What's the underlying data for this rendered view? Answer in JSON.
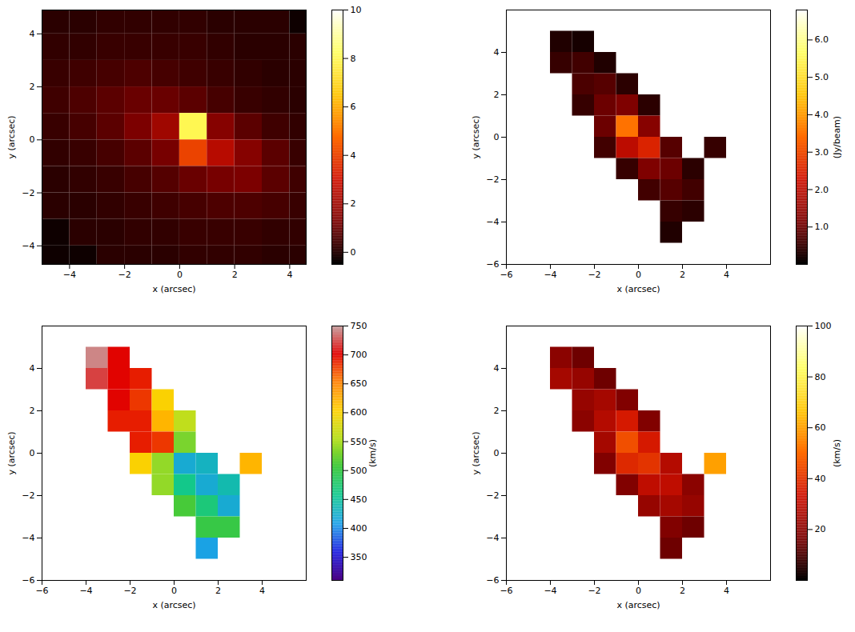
{
  "chart_data": [
    {
      "type": "heatmap",
      "x_label": "x (arcsec)",
      "y_label": "y (arcsec)",
      "xlim": [
        -5,
        4.6
      ],
      "ylim": [
        -4.7,
        4.9
      ],
      "xticks": [
        -4,
        -2,
        0,
        2,
        4
      ],
      "yticks": [
        -4,
        -2,
        0,
        2,
        4
      ],
      "cells": {
        "x": [
          -4.5,
          -3.5,
          -2.5,
          -1.5,
          -0.5,
          0.5,
          1.5,
          2.5,
          3.5,
          4.5
        ],
        "y": [
          4.5,
          3.5,
          2.5,
          1.5,
          0.5,
          -0.5,
          -1.5,
          -2.5,
          -3.5,
          -4.5
        ],
        "values": [
          [
            0.1,
            0.1,
            0.2,
            0.2,
            0.2,
            0.2,
            0.1,
            0.1,
            0.1,
            -0.3
          ],
          [
            0.2,
            0.2,
            0.3,
            0.3,
            0.3,
            0.3,
            0.2,
            0.1,
            0.1,
            0.1
          ],
          [
            0.3,
            0.4,
            0.5,
            0.6,
            0.5,
            0.4,
            0.3,
            0.2,
            0.1,
            0.1
          ],
          [
            0.4,
            0.6,
            0.8,
            1.0,
            1.0,
            0.8,
            0.5,
            0.3,
            0.2,
            0.1
          ],
          [
            0.3,
            0.5,
            0.8,
            1.3,
            2.0,
            8.0,
            1.5,
            0.8,
            0.4,
            0.2
          ],
          [
            0.2,
            0.3,
            0.5,
            0.8,
            1.2,
            4.0,
            2.5,
            1.5,
            0.8,
            0.3
          ],
          [
            0.1,
            0.2,
            0.3,
            0.5,
            0.7,
            1.0,
            1.2,
            1.3,
            0.8,
            0.4
          ],
          [
            0.1,
            0.1,
            0.2,
            0.3,
            0.4,
            0.5,
            0.6,
            0.6,
            0.5,
            0.3
          ],
          [
            -0.3,
            0.1,
            0.1,
            0.2,
            0.2,
            0.3,
            0.3,
            0.3,
            0.2,
            0.2
          ],
          [
            -0.3,
            -0.3,
            0.1,
            0.1,
            0.1,
            0.2,
            0.2,
            0.2,
            0.1,
            0.1
          ]
        ]
      },
      "colorbar": {
        "lim": [
          -0.5,
          10
        ],
        "ticks": [
          0,
          2,
          4,
          6,
          8,
          10
        ]
      }
    },
    {
      "type": "heatmap",
      "x_label": "x (arcsec)",
      "y_label": "y (arcsec)",
      "xlim": [
        -6,
        6
      ],
      "ylim": [
        -6,
        6
      ],
      "xticks": [
        -6,
        -4,
        -2,
        0,
        2,
        4
      ],
      "yticks": [
        -6,
        -4,
        -2,
        0,
        2,
        4
      ],
      "cells": [
        [
          -3.5,
          4.5,
          0.3
        ],
        [
          -2.5,
          4.5,
          0.2
        ],
        [
          -3.5,
          3.5,
          0.5
        ],
        [
          -2.5,
          3.5,
          0.6
        ],
        [
          -1.5,
          3.5,
          0.3
        ],
        [
          -2.5,
          2.5,
          0.7
        ],
        [
          -1.5,
          2.5,
          0.8
        ],
        [
          -0.5,
          2.5,
          0.4
        ],
        [
          -2.5,
          1.5,
          0.5
        ],
        [
          -1.5,
          1.5,
          1.0
        ],
        [
          -0.5,
          1.5,
          1.2
        ],
        [
          0.5,
          1.5,
          0.4
        ],
        [
          -1.5,
          0.5,
          1.0
        ],
        [
          -0.5,
          0.5,
          3.5
        ],
        [
          0.5,
          0.5,
          1.3
        ],
        [
          -1.5,
          -0.5,
          0.6
        ],
        [
          -0.5,
          -0.5,
          2.0
        ],
        [
          0.5,
          -0.5,
          2.5
        ],
        [
          1.5,
          -0.5,
          0.8
        ],
        [
          3.5,
          -0.5,
          0.5
        ],
        [
          -0.5,
          -1.5,
          0.5
        ],
        [
          0.5,
          -1.5,
          1.2
        ],
        [
          1.5,
          -1.5,
          1.0
        ],
        [
          2.5,
          -1.5,
          0.4
        ],
        [
          0.5,
          -2.5,
          0.6
        ],
        [
          1.5,
          -2.5,
          0.8
        ],
        [
          2.5,
          -2.5,
          0.6
        ],
        [
          1.5,
          -3.5,
          0.5
        ],
        [
          2.5,
          -3.5,
          0.4
        ],
        [
          1.5,
          -4.5,
          0.3
        ]
      ],
      "colorbar": {
        "lim": [
          0,
          6.8
        ],
        "ticks": [
          1,
          2,
          3,
          4,
          5,
          6
        ],
        "label": "(Jy/beam)"
      }
    },
    {
      "type": "heatmap",
      "x_label": "x (arcsec)",
      "y_label": "y (arcsec)",
      "xlim": [
        -6,
        6
      ],
      "ylim": [
        -6,
        6
      ],
      "xticks": [
        -6,
        -4,
        -2,
        0,
        2,
        4
      ],
      "yticks": [
        -6,
        -4,
        -2,
        0,
        2,
        4
      ],
      "cells": [
        [
          -3.5,
          4.5,
          740
        ],
        [
          -2.5,
          4.5,
          700
        ],
        [
          -3.5,
          3.5,
          720
        ],
        [
          -2.5,
          3.5,
          700
        ],
        [
          -1.5,
          3.5,
          690
        ],
        [
          -2.5,
          2.5,
          700
        ],
        [
          -1.5,
          2.5,
          680
        ],
        [
          -0.5,
          2.5,
          600
        ],
        [
          -2.5,
          1.5,
          690
        ],
        [
          -1.5,
          1.5,
          690
        ],
        [
          -0.5,
          1.5,
          620
        ],
        [
          0.5,
          1.5,
          560
        ],
        [
          -1.5,
          0.5,
          690
        ],
        [
          -0.5,
          0.5,
          680
        ],
        [
          0.5,
          0.5,
          530
        ],
        [
          -1.5,
          -0.5,
          600
        ],
        [
          -0.5,
          -0.5,
          540
        ],
        [
          0.5,
          -0.5,
          420
        ],
        [
          1.5,
          -0.5,
          430
        ],
        [
          3.5,
          -0.5,
          620
        ],
        [
          -0.5,
          -1.5,
          540
        ],
        [
          0.5,
          -1.5,
          460
        ],
        [
          1.5,
          -1.5,
          420
        ],
        [
          2.5,
          -1.5,
          440
        ],
        [
          0.5,
          -2.5,
          510
        ],
        [
          1.5,
          -2.5,
          470
        ],
        [
          2.5,
          -2.5,
          420
        ],
        [
          1.5,
          -3.5,
          500
        ],
        [
          2.5,
          -3.5,
          500
        ],
        [
          1.5,
          -4.5,
          410
        ]
      ],
      "colorbar": {
        "lim": [
          310,
          750
        ],
        "ticks": [
          350,
          400,
          450,
          500,
          550,
          600,
          650,
          700,
          750
        ],
        "label": "(km/s)"
      }
    },
    {
      "type": "heatmap",
      "x_label": "x (arcsec)",
      "y_label": "y (arcsec)",
      "xlim": [
        -6,
        6
      ],
      "ylim": [
        -6,
        6
      ],
      "xticks": [
        -6,
        -4,
        -2,
        0,
        2,
        4
      ],
      "yticks": [
        -6,
        -4,
        -2,
        0,
        2,
        4
      ],
      "cells": [
        [
          -3.5,
          4.5,
          20
        ],
        [
          -2.5,
          4.5,
          15
        ],
        [
          -3.5,
          3.5,
          25
        ],
        [
          -2.5,
          3.5,
          22
        ],
        [
          -1.5,
          3.5,
          15
        ],
        [
          -2.5,
          2.5,
          22
        ],
        [
          -1.5,
          2.5,
          25
        ],
        [
          -0.5,
          2.5,
          18
        ],
        [
          -2.5,
          1.5,
          20
        ],
        [
          -1.5,
          1.5,
          28
        ],
        [
          -0.5,
          1.5,
          35
        ],
        [
          0.5,
          1.5,
          18
        ],
        [
          -1.5,
          0.5,
          25
        ],
        [
          -0.5,
          0.5,
          45
        ],
        [
          0.5,
          0.5,
          35
        ],
        [
          -1.5,
          -0.5,
          18
        ],
        [
          -0.5,
          -0.5,
          38
        ],
        [
          0.5,
          -0.5,
          40
        ],
        [
          1.5,
          -0.5,
          28
        ],
        [
          3.5,
          -0.5,
          60
        ],
        [
          -0.5,
          -1.5,
          18
        ],
        [
          0.5,
          -1.5,
          30
        ],
        [
          1.5,
          -1.5,
          30
        ],
        [
          2.5,
          -1.5,
          20
        ],
        [
          0.5,
          -2.5,
          22
        ],
        [
          1.5,
          -2.5,
          25
        ],
        [
          2.5,
          -2.5,
          22
        ],
        [
          1.5,
          -3.5,
          18
        ],
        [
          2.5,
          -3.5,
          15
        ],
        [
          1.5,
          -4.5,
          15
        ]
      ],
      "colorbar": {
        "lim": [
          0,
          100
        ],
        "ticks": [
          20,
          40,
          60,
          80,
          100
        ],
        "label": "(km/s)"
      }
    }
  ]
}
